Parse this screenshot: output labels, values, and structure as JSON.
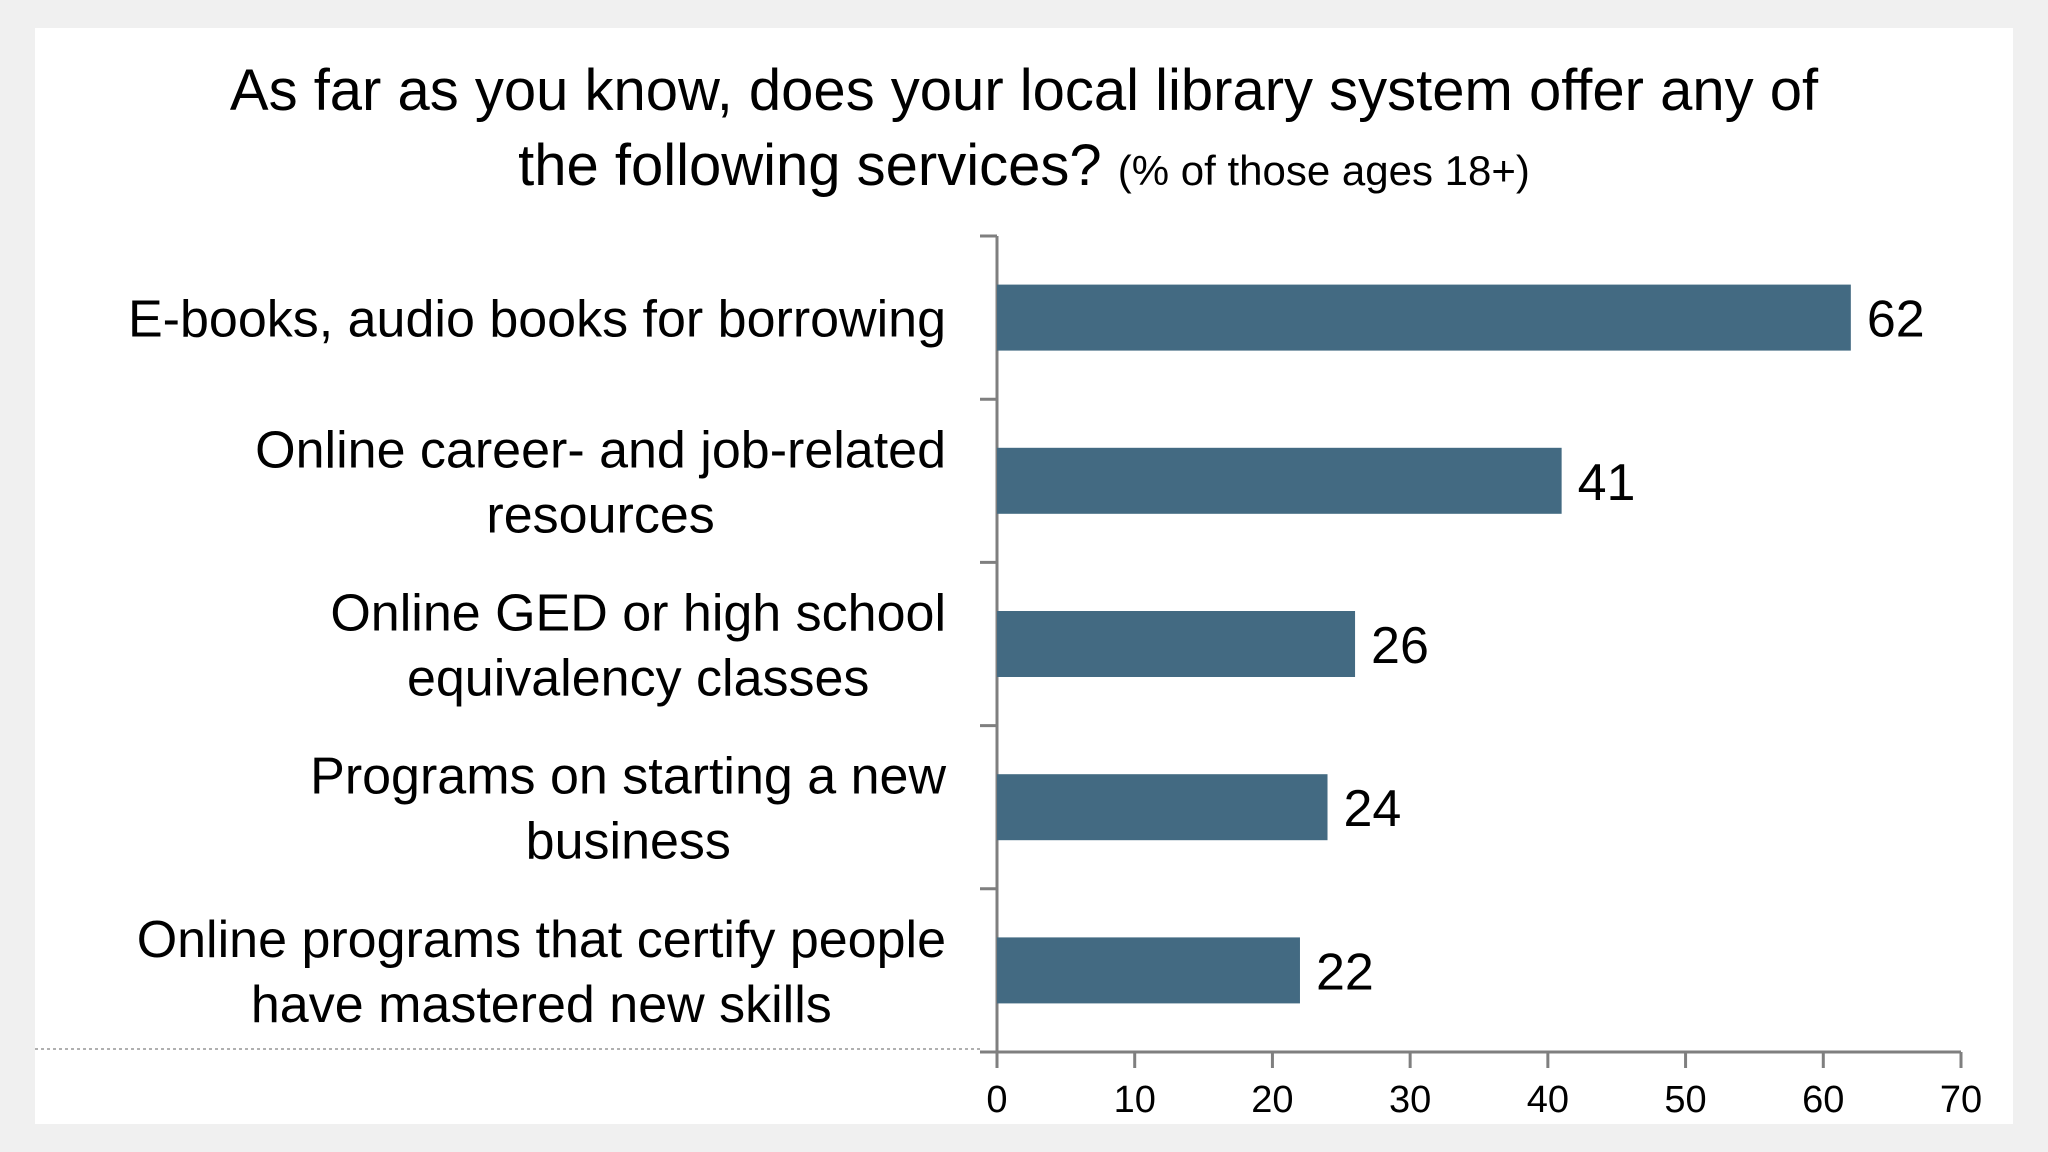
{
  "chart_data": {
    "type": "bar",
    "orientation": "horizontal",
    "title": "As far as you know, does your local library system offer any of the following services?",
    "subtitle": "(% of those ages 18+)",
    "categories": [
      "E-books, audio books for borrowing",
      "Online career- and job-related resources",
      "Online GED or high school equivalency classes",
      "Programs on starting a new business",
      "Online programs that certify people have mastered new skills"
    ],
    "category_lines": [
      [
        "E-books, audio books for borrowing"
      ],
      [
        "Online career- and job-related",
        "resources"
      ],
      [
        "Online GED or high school",
        "equivalency classes"
      ],
      [
        "Programs on starting a new",
        "business"
      ],
      [
        "Online programs that certify people",
        "have mastered new skills"
      ]
    ],
    "values": [
      62,
      41,
      26,
      24,
      22
    ],
    "xlim": [
      0,
      70
    ],
    "xticks": [
      0,
      10,
      20,
      30,
      40,
      50,
      60,
      70
    ],
    "bar_color": "#436a82",
    "data_labels": true,
    "grid": false,
    "legend": "none"
  }
}
